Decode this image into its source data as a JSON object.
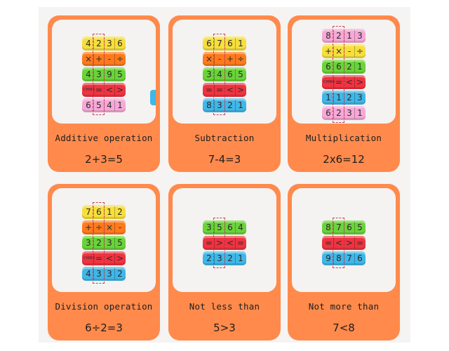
{
  "colors": {
    "card_background": "#ff8a4c",
    "photo_background": "#f4f3f1",
    "window_dash": "#d0405a",
    "yellow": "#f7df3b",
    "orange": "#ff7a1c",
    "green": "#6ad33a",
    "red": "#ef3340",
    "pink": "#f6a8d7",
    "blue": "#3fb7e8"
  },
  "cards": [
    {
      "label": "Additive operation",
      "formula": "2+3=5",
      "rings": [
        {
          "color": "yellow",
          "cells": [
            "4",
            "2",
            "3",
            "6"
          ]
        },
        {
          "color": "orange",
          "cells": [
            "×",
            "+",
            "-",
            "÷"
          ]
        },
        {
          "color": "green",
          "cells": [
            "4",
            "3",
            "9",
            "5"
          ]
        },
        {
          "color": "red",
          "cells": [
            "CHINA",
            "=",
            "<",
            ">"
          ]
        },
        {
          "color": "pink",
          "cells": [
            "6",
            "5",
            "4",
            "1"
          ]
        }
      ]
    },
    {
      "label": "Subtraction",
      "formula": "7-4=3",
      "rings": [
        {
          "color": "yellow",
          "cells": [
            "6",
            "7",
            "6",
            "1"
          ]
        },
        {
          "color": "orange",
          "cells": [
            "×",
            "-",
            "+",
            "÷"
          ]
        },
        {
          "color": "green",
          "cells": [
            "3",
            "4",
            "6",
            "5"
          ]
        },
        {
          "color": "red",
          "cells": [
            "=",
            "=",
            "<",
            ">"
          ]
        },
        {
          "color": "blue",
          "cells": [
            "8",
            "3",
            "2",
            "1"
          ]
        }
      ]
    },
    {
      "label": "Multiplication",
      "formula": "2x6=12",
      "rings": [
        {
          "color": "pink",
          "cells": [
            "8",
            "2",
            "1",
            "3"
          ]
        },
        {
          "color": "yellow",
          "cells": [
            "+",
            "×",
            "-",
            "÷"
          ]
        },
        {
          "color": "green",
          "cells": [
            "6",
            "6",
            "2",
            "1"
          ]
        },
        {
          "color": "red",
          "cells": [
            "CHINA",
            "=",
            "<",
            ">"
          ]
        },
        {
          "color": "blue",
          "cells": [
            "1",
            "1",
            "2",
            "3"
          ]
        },
        {
          "color": "pink",
          "cells": [
            "6",
            "2",
            "3",
            "1"
          ]
        }
      ]
    },
    {
      "label": "Division operation",
      "formula": "6÷2=3",
      "rings": [
        {
          "color": "yellow",
          "cells": [
            "7",
            "6",
            "1",
            "2"
          ]
        },
        {
          "color": "orange",
          "cells": [
            "+",
            "÷",
            "×",
            "-"
          ]
        },
        {
          "color": "green",
          "cells": [
            "3",
            "2",
            "3",
            "5"
          ]
        },
        {
          "color": "red",
          "cells": [
            "CHINA",
            "=",
            "<",
            ">"
          ]
        },
        {
          "color": "blue",
          "cells": [
            "4",
            "3",
            "3",
            "2"
          ]
        }
      ]
    },
    {
      "label": "Not less than",
      "formula": "5>3",
      "rings": [
        {
          "color": "green",
          "cells": [
            "3",
            "5",
            "6",
            "4"
          ]
        },
        {
          "color": "red",
          "cells": [
            "=",
            ">",
            "<",
            "="
          ]
        },
        {
          "color": "blue",
          "cells": [
            "2",
            "3",
            "2",
            "1"
          ]
        }
      ]
    },
    {
      "label": "Not more than",
      "formula": "7<8",
      "rings": [
        {
          "color": "green",
          "cells": [
            "8",
            "7",
            "6",
            "5"
          ]
        },
        {
          "color": "red",
          "cells": [
            "=",
            "<",
            ">",
            "="
          ]
        },
        {
          "color": "blue",
          "cells": [
            "9",
            "8",
            "7",
            "6"
          ]
        }
      ]
    }
  ]
}
